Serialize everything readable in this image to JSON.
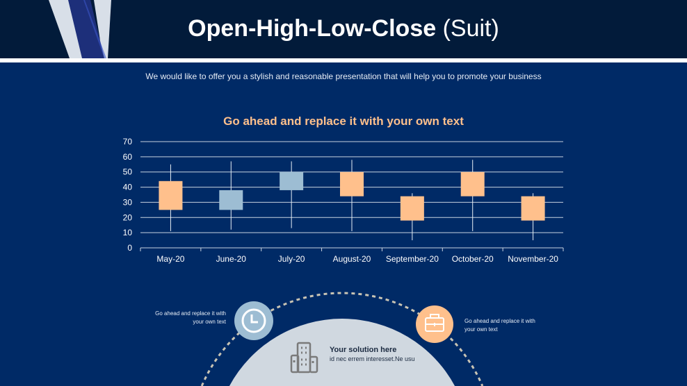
{
  "header": {
    "title_bold": "Open-High-Low-Close",
    "title_light": " (Suit)",
    "subtitle": "We would like to offer you a stylish and reasonable presentation that will help you to promote your business"
  },
  "colors": {
    "up": "#9dbdd3",
    "down": "#ffc08c",
    "background": "#002a66"
  },
  "chart_data": {
    "type": "candlestick",
    "title": "Go ahead and replace it with your own text",
    "categories": [
      "May-20",
      "June-20",
      "July-20",
      "August-20",
      "September-20",
      "October-20",
      "November-20"
    ],
    "open": [
      44,
      25,
      38,
      50,
      34,
      50,
      34
    ],
    "high": [
      55,
      57,
      57,
      58,
      36,
      58,
      36
    ],
    "low": [
      11,
      12,
      13,
      11,
      5,
      11,
      5
    ],
    "close": [
      25,
      38,
      50,
      34,
      18,
      34,
      18
    ],
    "ylim": [
      0,
      70
    ],
    "yticks": [
      0,
      10,
      20,
      30,
      40,
      50,
      60,
      70
    ],
    "grid": true
  },
  "bottom": {
    "left_text_1": "Go ahead and replace it with",
    "left_text_2": "your own text",
    "right_text_1": "Go ahead and replace it with",
    "right_text_2": "your own text",
    "solution_title": "Your solution here",
    "solution_text": "id nec errem  interesset.Ne usu",
    "icons": [
      "clock-icon",
      "briefcase-icon",
      "building-icon"
    ]
  }
}
